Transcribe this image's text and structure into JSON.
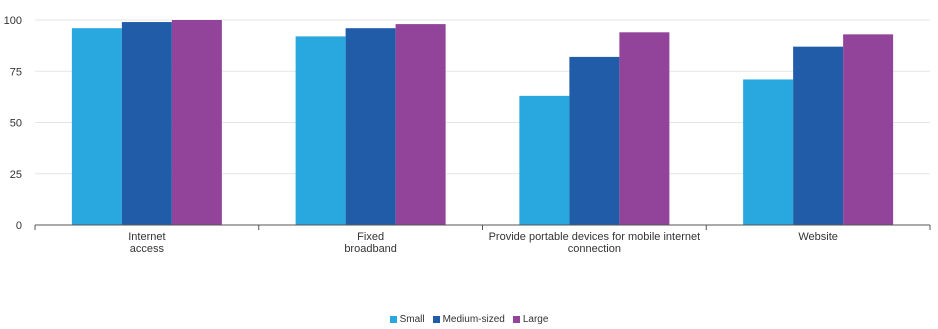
{
  "chart_data": {
    "type": "bar",
    "categories": [
      [
        "Internet",
        "access"
      ],
      [
        "Fixed",
        "broadband"
      ],
      [
        "Provide portable devices for mobile internet",
        "connection"
      ],
      [
        "Website"
      ]
    ],
    "series": [
      {
        "name": "Small",
        "color": "#29a8e0",
        "values": [
          96,
          92,
          63,
          71
        ]
      },
      {
        "name": "Medium-sized",
        "color": "#215ca8",
        "values": [
          99,
          96,
          82,
          87
        ]
      },
      {
        "name": "Large",
        "color": "#92449b",
        "values": [
          100,
          98,
          94,
          93
        ]
      }
    ],
    "ylim": [
      0,
      100
    ],
    "yticks": [
      0,
      25,
      50,
      75,
      100
    ],
    "grid": true,
    "legend_position": "bottom-center"
  }
}
